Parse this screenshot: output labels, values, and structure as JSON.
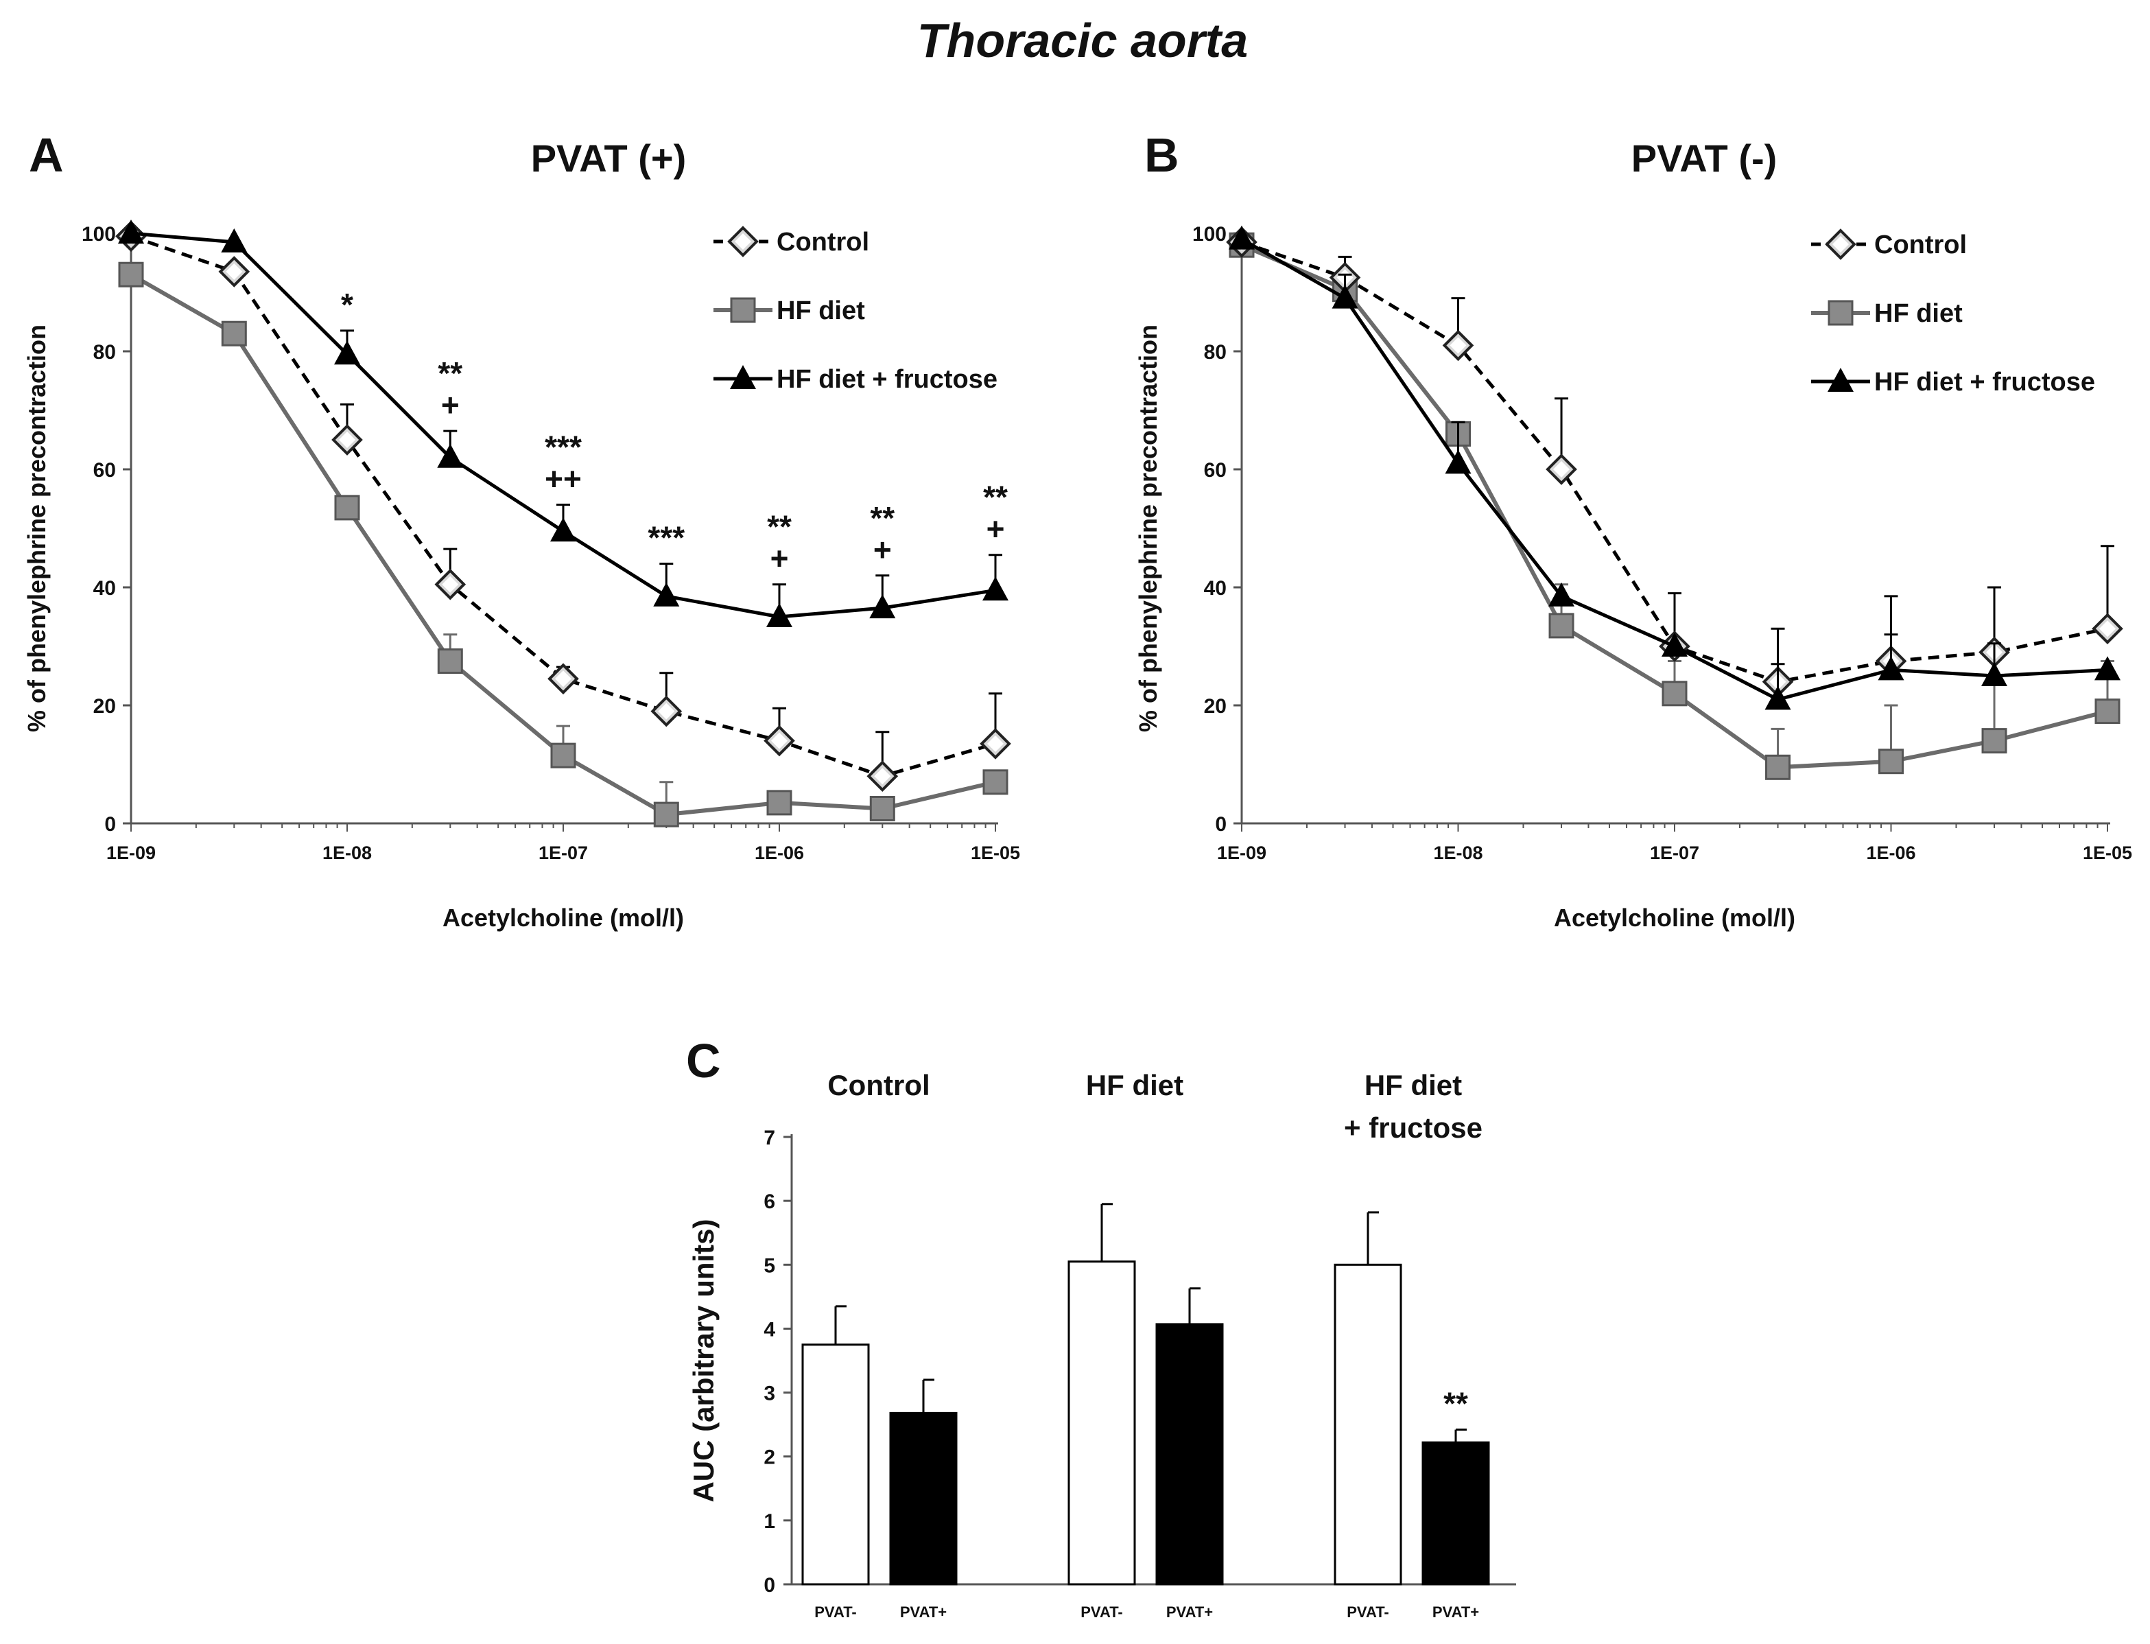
{
  "figure_title": "Thoracic aorta",
  "colors": {
    "control": "#000000",
    "hf": "#6b6b6b",
    "hff": "#000000",
    "square_fill": "#8a8a8a",
    "diamond_fill": "#d9d9d9"
  },
  "chart_data": [
    {
      "panel": "A",
      "type": "line",
      "title": "PVAT (+)",
      "xlabel": "Acetylcholine (mol/l)",
      "ylabel": "% of phenylephrine precontraction",
      "xscale": "log",
      "x": [
        1e-09,
        3e-09,
        1e-08,
        3e-08,
        1e-07,
        3e-07,
        1e-06,
        3e-06,
        1e-05
      ],
      "xticks": [
        "1E-09",
        "1E-08",
        "1E-07",
        "1E-06",
        "1E-05"
      ],
      "yticks": [
        "0",
        "20",
        "40",
        "60",
        "80",
        "100"
      ],
      "ylim": [
        0,
        100
      ],
      "legend": "top-right",
      "series": [
        {
          "name": "Control",
          "key": "control",
          "values": [
            99.5,
            93.5,
            65,
            40.5,
            24.5,
            19,
            14,
            8,
            13.5
          ],
          "errors": [
            0,
            0,
            6,
            6,
            2,
            6.5,
            5.5,
            7.5,
            8.5
          ]
        },
        {
          "name": "HF diet",
          "key": "hf",
          "values": [
            93,
            83,
            53.5,
            27.5,
            11.5,
            1.5,
            3.5,
            2.5,
            7
          ],
          "errors": [
            0,
            0,
            0,
            4.5,
            5,
            5.5,
            0,
            0,
            0
          ]
        },
        {
          "name": "HF diet + fructose",
          "key": "hff",
          "values": [
            100,
            98.5,
            79.5,
            62,
            49.5,
            38.5,
            35,
            36.5,
            39.5
          ],
          "errors": [
            0,
            0,
            4,
            4.5,
            4.5,
            5.5,
            5.5,
            5.5,
            6
          ]
        }
      ],
      "annotations": [
        {
          "x": 1e-08,
          "lines": [
            "*"
          ]
        },
        {
          "x": 3e-08,
          "lines": [
            "**",
            "+"
          ]
        },
        {
          "x": 1e-07,
          "lines": [
            "***",
            "++"
          ]
        },
        {
          "x": 3e-07,
          "lines": [
            "***"
          ]
        },
        {
          "x": 1e-06,
          "lines": [
            "**",
            "+"
          ]
        },
        {
          "x": 3e-06,
          "lines": [
            "**",
            "+"
          ]
        },
        {
          "x": 1e-05,
          "lines": [
            "**",
            "+"
          ]
        }
      ]
    },
    {
      "panel": "B",
      "type": "line",
      "title": "PVAT (-)",
      "xlabel": "Acetylcholine (mol/l)",
      "ylabel": "% of phenylephrine precontraction",
      "xscale": "log",
      "x": [
        1e-09,
        3e-09,
        1e-08,
        3e-08,
        1e-07,
        3e-07,
        1e-06,
        3e-06,
        1e-05
      ],
      "xticks": [
        "1E-09",
        "1E-08",
        "1E-07",
        "1E-06",
        "1E-05"
      ],
      "yticks": [
        "0",
        "20",
        "40",
        "60",
        "80",
        "100"
      ],
      "ylim": [
        0,
        100
      ],
      "legend": "top-right",
      "series": [
        {
          "name": "Control",
          "key": "control",
          "values": [
            98.5,
            92.5,
            81,
            60,
            30,
            24,
            27.5,
            29,
            33
          ],
          "errors": [
            0,
            3.5,
            8,
            12,
            9,
            9,
            11,
            11,
            14
          ]
        },
        {
          "name": "HF diet",
          "key": "hf",
          "values": [
            98,
            90.5,
            66,
            33.5,
            22,
            9.5,
            10.5,
            14,
            19
          ],
          "errors": [
            0,
            0,
            0,
            7,
            5.5,
            6.5,
            9.5,
            9.5,
            8.5
          ]
        },
        {
          "name": "HF diet + fructose",
          "key": "hff",
          "values": [
            99,
            89,
            61,
            38.5,
            30,
            21,
            26,
            25,
            26
          ],
          "errors": [
            0,
            4,
            7,
            0,
            0,
            6,
            6,
            5.5,
            0
          ]
        }
      ],
      "annotations": []
    },
    {
      "panel": "C",
      "type": "bar",
      "ylabel": "AUC (arbitrary units)",
      "ylim": [
        0,
        7
      ],
      "yticks": [
        "0",
        "1",
        "2",
        "3",
        "4",
        "5",
        "6",
        "7"
      ],
      "groups": [
        {
          "label_lines": [
            "Control"
          ],
          "bars": [
            {
              "label": "PVAT-",
              "value": 3.75,
              "error": 0.6
            },
            {
              "label": "PVAT+",
              "value": 2.68,
              "error": 0.52
            }
          ]
        },
        {
          "label_lines": [
            "HF diet"
          ],
          "bars": [
            {
              "label": "PVAT-",
              "value": 5.05,
              "error": 0.9
            },
            {
              "label": "PVAT+",
              "value": 4.07,
              "error": 0.56
            }
          ]
        },
        {
          "label_lines": [
            "HF diet",
            "+ fructose"
          ],
          "bars": [
            {
              "label": "PVAT-",
              "value": 5.0,
              "error": 0.82
            },
            {
              "label": "PVAT+",
              "value": 2.22,
              "error": 0.2,
              "mark": "**"
            }
          ]
        }
      ]
    }
  ]
}
